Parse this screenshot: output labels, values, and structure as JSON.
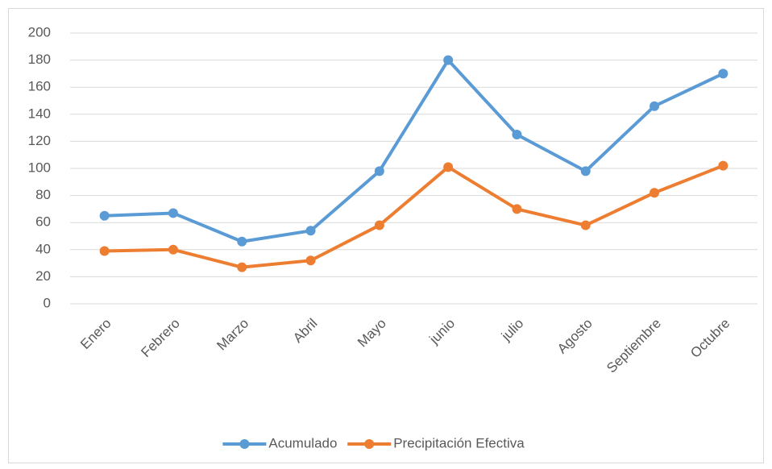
{
  "chart_data": {
    "type": "line",
    "categories": [
      "Enero",
      "Febrero",
      "Marzo",
      "Abril",
      "Mayo",
      "junio",
      "julio",
      "Agosto",
      "Septiembre",
      "Octubre"
    ],
    "series": [
      {
        "name": "Acumulado",
        "color": "#5b9bd5",
        "values": [
          65,
          67,
          46,
          54,
          98,
          180,
          125,
          98,
          146,
          170
        ]
      },
      {
        "name": "Precipitación Efectiva",
        "color": "#ed7d31",
        "values": [
          39,
          40,
          27,
          32,
          58,
          101,
          70,
          58,
          82,
          102
        ]
      }
    ],
    "ylim": [
      0,
      200
    ],
    "yticks": [
      0,
      20,
      40,
      60,
      80,
      100,
      120,
      140,
      160,
      180,
      200
    ],
    "grid": true,
    "legend": "bottom"
  }
}
